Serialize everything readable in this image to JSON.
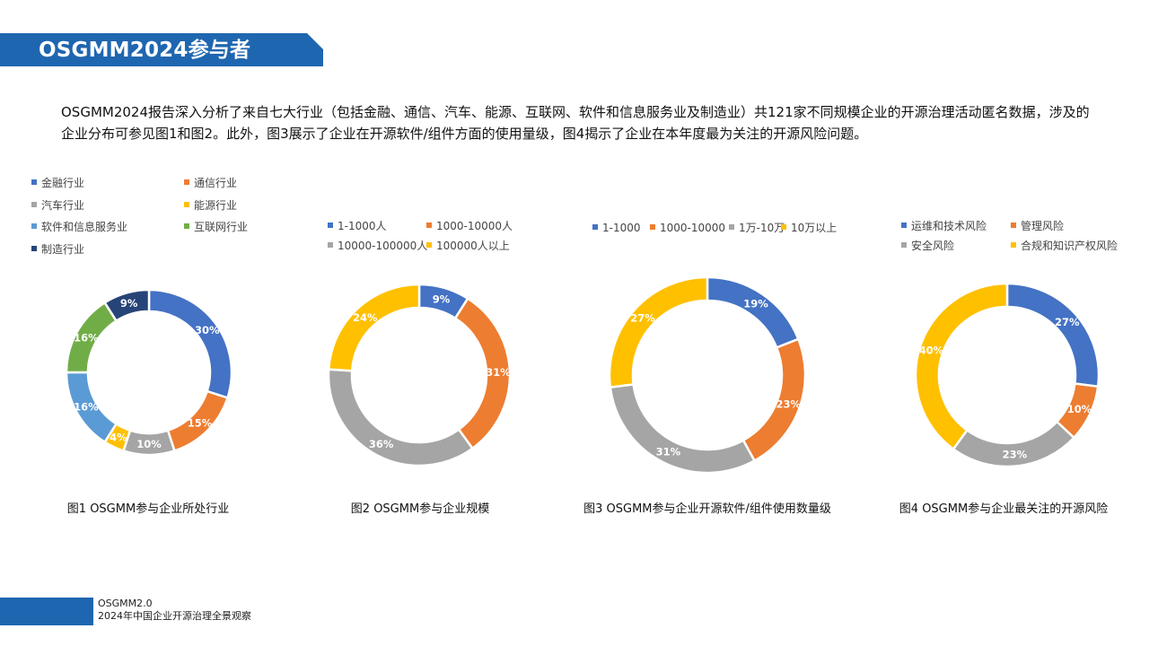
{
  "header": {
    "title": "OSGMM2024参与者"
  },
  "intro": "OSGMM2024报告深入分析了来自七大行业（包括金融、通信、汽车、能源、互联网、软件和信息服务业及制造业）共121家不同规模企业的开源治理活动匿名数据，涉及的企业分布可参见图1和图2。此外，图3展示了企业在开源软件/组件方面的使用量级，图4揭示了企业在本年度最为关注的开源风险问题。",
  "chart_data": [
    {
      "type": "pie",
      "caption": "图1 OSGMM参与企业所处行业",
      "categories": [
        "金融行业",
        "通信行业",
        "汽车行业",
        "能源行业",
        "软件和信息服务业",
        "互联网行业",
        "制造行业"
      ],
      "legend_order": [
        "金融行业",
        "通信行业",
        "汽车行业",
        "能源行业",
        "软件和信息服务业",
        "互联网行业",
        "制造行业"
      ],
      "values": [
        30,
        15,
        10,
        4,
        16,
        16,
        9
      ],
      "labels": [
        "30%",
        "15%",
        "10%",
        "4%",
        "16%",
        "16%",
        "9%"
      ],
      "colors": [
        "#4472c4",
        "#ed7d31",
        "#a5a5a5",
        "#ffc000",
        "#5b9bd5",
        "#70ad47",
        "#264478"
      ]
    },
    {
      "type": "pie",
      "caption": "图2 OSGMM参与企业规模",
      "categories": [
        "1-1000人",
        "1000-10000人",
        "10000-100000人",
        "100000人以上"
      ],
      "legend_order": [
        "1-1000人",
        "1000-10000人",
        "10000-100000人",
        "100000人以上"
      ],
      "values": [
        9,
        31,
        36,
        24
      ],
      "labels": [
        "9%",
        "31%",
        "36%",
        "24%"
      ],
      "colors": [
        "#4472c4",
        "#ed7d31",
        "#a5a5a5",
        "#ffc000"
      ]
    },
    {
      "type": "pie",
      "caption": "图3 OSGMM参与企业开源软件/组件使用数量级",
      "categories": [
        "1-1000",
        "1000-10000",
        "1万-10万",
        "10万以上"
      ],
      "legend_order": [
        "1-1000",
        "1000-10000",
        "1万-10万",
        "10万以上"
      ],
      "values": [
        19,
        23,
        31,
        27
      ],
      "labels": [
        "19%",
        "23%",
        "31%",
        "27%"
      ],
      "colors": [
        "#4472c4",
        "#ed7d31",
        "#a5a5a5",
        "#ffc000"
      ]
    },
    {
      "type": "pie",
      "caption": "图4 OSGMM参与企业最关注的开源风险",
      "categories": [
        "运维和技术风险",
        "管理风险",
        "安全风险",
        "合规和知识产权风险"
      ],
      "legend_order": [
        "运维和技术风险",
        "管理风险",
        "安全风险",
        "合规和知识产权风险"
      ],
      "values": [
        27,
        10,
        23,
        40
      ],
      "labels": [
        "27%",
        "10%",
        "23%",
        "40%"
      ],
      "colors": [
        "#4472c4",
        "#ed7d31",
        "#a5a5a5",
        "#ffc000"
      ]
    }
  ],
  "footer": {
    "line1": "OSGMM2.0",
    "line2": "2024年中国企业开源治理全景观察"
  }
}
